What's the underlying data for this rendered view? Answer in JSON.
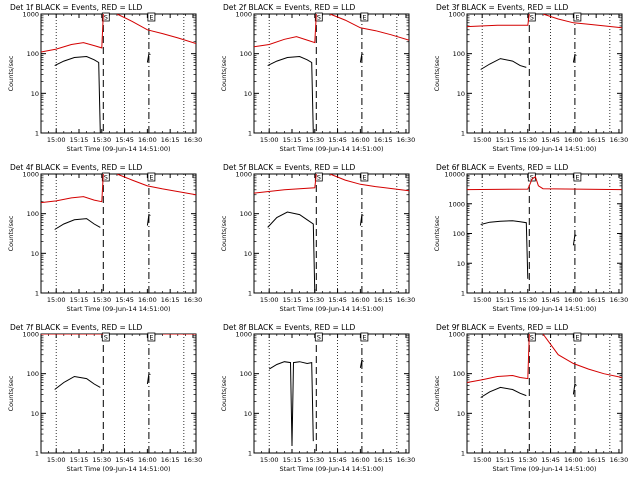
{
  "xlabel": "Start Time (09-Jun-14 14:51:00)",
  "ylabel": "Counts/sec",
  "x_tick_labels": [
    "15:00",
    "15:15",
    "15:30",
    "15:45",
    "16:00",
    "16:15",
    "16:30"
  ],
  "y_tick_labels": [
    "1",
    "10",
    "100",
    "1000"
  ],
  "y_tick_labels_big": [
    "1",
    "10",
    "100",
    "1000",
    "10000"
  ],
  "markers": [
    "S",
    "E"
  ],
  "colors": {
    "events": "#000000",
    "lld": "#d40000"
  },
  "chart_data": [
    {
      "type": "line",
      "title": "Det 1f BLACK = Events, RED = LLD",
      "x_range_min": [
        0,
        102
      ],
      "y_scale": "log",
      "ylim": [
        1,
        1000
      ],
      "dotted_lines_min": [
        10,
        55,
        94
      ],
      "dashed_lines_min": [
        41,
        71
      ],
      "series": [
        {
          "name": "Events",
          "color": "#000000",
          "segments": [
            [
              [
                9,
                50
              ],
              [
                15,
                65
              ],
              [
                22,
                80
              ],
              [
                30,
                85
              ],
              [
                35,
                70
              ],
              [
                38,
                60
              ],
              [
                39,
                1.0
              ]
            ],
            [
              [
                70,
                60
              ],
              [
                71,
                100
              ],
              [
                72,
                95
              ]
            ]
          ]
        },
        {
          "name": "LLD",
          "color": "#d40000",
          "segments": [
            [
              [
                0,
                110
              ],
              [
                10,
                130
              ],
              [
                20,
                170
              ],
              [
                28,
                190
              ],
              [
                35,
                160
              ],
              [
                40,
                140
              ],
              [
                41,
                1000
              ]
            ],
            [
              [
                50,
                1000
              ],
              [
                60,
                650
              ],
              [
                70,
                400
              ],
              [
                80,
                320
              ],
              [
                90,
                250
              ],
              [
                102,
                180
              ]
            ]
          ]
        }
      ]
    },
    {
      "type": "line",
      "title": "Det 2f BLACK = Events, RED = LLD",
      "x_range_min": [
        0,
        102
      ],
      "y_scale": "log",
      "ylim": [
        1,
        1000
      ],
      "dotted_lines_min": [
        10,
        55,
        94
      ],
      "dashed_lines_min": [
        41,
        71
      ],
      "series": [
        {
          "name": "Events",
          "color": "#000000",
          "segments": [
            [
              [
                9,
                50
              ],
              [
                15,
                65
              ],
              [
                22,
                80
              ],
              [
                30,
                85
              ],
              [
                35,
                70
              ],
              [
                38,
                60
              ],
              [
                39,
                1.0
              ]
            ],
            [
              [
                70,
                60
              ],
              [
                71,
                100
              ],
              [
                72,
                95
              ]
            ]
          ]
        },
        {
          "name": "LLD",
          "color": "#d40000",
          "segments": [
            [
              [
                0,
                150
              ],
              [
                10,
                170
              ],
              [
                20,
                230
              ],
              [
                28,
                270
              ],
              [
                35,
                220
              ],
              [
                40,
                190
              ],
              [
                41,
                1000
              ]
            ],
            [
              [
                50,
                1000
              ],
              [
                60,
                700
              ],
              [
                70,
                450
              ],
              [
                80,
                380
              ],
              [
                90,
                300
              ],
              [
                102,
                220
              ]
            ]
          ]
        }
      ]
    },
    {
      "type": "line",
      "title": "Det 3f BLACK = Events, RED = LLD",
      "x_range_min": [
        0,
        102
      ],
      "y_scale": "log",
      "ylim": [
        1,
        1000
      ],
      "dotted_lines_min": [
        10,
        55,
        94
      ],
      "dashed_lines_min": [
        41,
        71
      ],
      "series": [
        {
          "name": "Events",
          "color": "#000000",
          "segments": [
            [
              [
                9,
                40
              ],
              [
                15,
                55
              ],
              [
                22,
                75
              ],
              [
                30,
                65
              ],
              [
                35,
                50
              ],
              [
                39,
                45
              ]
            ],
            [
              [
                70,
                60
              ],
              [
                71,
                95
              ],
              [
                72,
                90
              ]
            ]
          ]
        },
        {
          "name": "LLD",
          "color": "#d40000",
          "segments": [
            [
              [
                0,
                480
              ],
              [
                20,
                520
              ],
              [
                40,
                520
              ],
              [
                41,
                1000
              ]
            ],
            [
              [
                50,
                1000
              ],
              [
                60,
                750
              ],
              [
                70,
                600
              ],
              [
                80,
                550
              ],
              [
                102,
                450
              ]
            ]
          ]
        }
      ]
    },
    {
      "type": "line",
      "title": "Det 4f BLACK = Events, RED = LLD",
      "x_range_min": [
        0,
        102
      ],
      "y_scale": "log",
      "ylim": [
        1,
        1000
      ],
      "dotted_lines_min": [
        10,
        55,
        94
      ],
      "dashed_lines_min": [
        41,
        71
      ],
      "series": [
        {
          "name": "Events",
          "color": "#000000",
          "segments": [
            [
              [
                9,
                40
              ],
              [
                15,
                55
              ],
              [
                22,
                70
              ],
              [
                30,
                75
              ],
              [
                35,
                55
              ],
              [
                39,
                45
              ]
            ],
            [
              [
                70,
                50
              ],
              [
                71,
                95
              ],
              [
                72,
                90
              ]
            ]
          ]
        },
        {
          "name": "LLD",
          "color": "#d40000",
          "segments": [
            [
              [
                0,
                190
              ],
              [
                10,
                210
              ],
              [
                20,
                250
              ],
              [
                28,
                270
              ],
              [
                35,
                220
              ],
              [
                40,
                200
              ],
              [
                41,
                1000
              ]
            ],
            [
              [
                50,
                1000
              ],
              [
                60,
                700
              ],
              [
                70,
                500
              ],
              [
                80,
                420
              ],
              [
                102,
                300
              ]
            ]
          ]
        }
      ]
    },
    {
      "type": "line",
      "title": "Det 5f BLACK = Events, RED = LLD",
      "x_range_min": [
        0,
        102
      ],
      "y_scale": "log",
      "ylim": [
        1,
        1000
      ],
      "dotted_lines_min": [
        10,
        55,
        94
      ],
      "dashed_lines_min": [
        41,
        71
      ],
      "series": [
        {
          "name": "Events",
          "color": "#000000",
          "segments": [
            [
              [
                9,
                45
              ],
              [
                15,
                80
              ],
              [
                22,
                110
              ],
              [
                30,
                95
              ],
              [
                35,
                70
              ],
              [
                39,
                55
              ],
              [
                40,
                1.0
              ]
            ],
            [
              [
                70,
                50
              ],
              [
                71,
                95
              ],
              [
                72,
                90
              ]
            ]
          ]
        },
        {
          "name": "LLD",
          "color": "#d40000",
          "segments": [
            [
              [
                0,
                330
              ],
              [
                20,
                400
              ],
              [
                40,
                450
              ],
              [
                41,
                1000
              ]
            ],
            [
              [
                50,
                1000
              ],
              [
                60,
                700
              ],
              [
                70,
                550
              ],
              [
                80,
                480
              ],
              [
                102,
                380
              ]
            ]
          ]
        }
      ]
    },
    {
      "type": "line",
      "title": "Det 6f BLACK = Events, RED = LLD",
      "x_range_min": [
        0,
        102
      ],
      "y_scale": "log",
      "ylim": [
        1,
        10000
      ],
      "dotted_lines_min": [
        10,
        55,
        94
      ],
      "dashed_lines_min": [
        41,
        71
      ],
      "series": [
        {
          "name": "Events",
          "color": "#000000",
          "segments": [
            [
              [
                9,
                200
              ],
              [
                15,
                240
              ],
              [
                22,
                260
              ],
              [
                30,
                270
              ],
              [
                35,
                250
              ],
              [
                39,
                230
              ],
              [
                40,
                3.0
              ]
            ],
            [
              [
                70,
                40
              ],
              [
                71,
                90
              ],
              [
                72,
                85
              ]
            ]
          ]
        },
        {
          "name": "LLD",
          "color": "#d40000",
          "segments": [
            [
              [
                0,
                3000
              ],
              [
                40,
                3100
              ],
              [
                41,
                4000
              ],
              [
                43,
                7000
              ],
              [
                45,
                8000
              ],
              [
                47,
                4000
              ],
              [
                50,
                3200
              ],
              [
                102,
                3000
              ]
            ]
          ]
        }
      ]
    },
    {
      "type": "line",
      "title": "Det 7f BLACK = Events, RED = LLD",
      "x_range_min": [
        0,
        102
      ],
      "y_scale": "log",
      "ylim": [
        1,
        1000
      ],
      "dotted_lines_min": [
        10,
        55,
        94
      ],
      "dashed_lines_min": [
        41,
        71
      ],
      "series": [
        {
          "name": "Events",
          "color": "#000000",
          "segments": [
            [
              [
                9,
                40
              ],
              [
                15,
                60
              ],
              [
                22,
                85
              ],
              [
                30,
                75
              ],
              [
                35,
                55
              ],
              [
                39,
                45
              ]
            ],
            [
              [
                70,
                55
              ],
              [
                71,
                100
              ],
              [
                72,
                95
              ]
            ]
          ]
        },
        {
          "name": "LLD",
          "color": "#d40000",
          "segments": [
            [
              [
                0,
                1000
              ],
              [
                41,
                1000
              ]
            ],
            [
              [
                80,
                1000
              ],
              [
                102,
                1000
              ]
            ]
          ]
        }
      ]
    },
    {
      "type": "line",
      "title": "Det 8f BLACK = Events, RED = LLD",
      "x_range_min": [
        0,
        102
      ],
      "y_scale": "log",
      "ylim": [
        1,
        1000
      ],
      "dotted_lines_min": [
        10,
        55,
        94
      ],
      "dashed_lines_min": [
        41,
        71
      ],
      "series": [
        {
          "name": "Events",
          "color": "#000000",
          "segments": [
            [
              [
                10,
                130
              ],
              [
                15,
                170
              ],
              [
                20,
                200
              ],
              [
                24,
                190
              ],
              [
                25,
                1.5
              ],
              [
                26,
                190
              ],
              [
                30,
                200
              ],
              [
                35,
                180
              ],
              [
                38,
                190
              ],
              [
                39,
                2.0
              ]
            ],
            [
              [
                70,
                140
              ],
              [
                71,
                220
              ],
              [
                72,
                200
              ]
            ]
          ]
        }
      ]
    },
    {
      "type": "line",
      "title": "Det 9f BLACK = Events, RED = LLD",
      "x_range_min": [
        0,
        102
      ],
      "y_scale": "log",
      "ylim": [
        1,
        1000
      ],
      "dotted_lines_min": [
        10,
        55,
        94
      ],
      "dashed_lines_min": [
        41,
        71
      ],
      "series": [
        {
          "name": "Events",
          "color": "#000000",
          "segments": [
            [
              [
                9,
                25
              ],
              [
                15,
                35
              ],
              [
                22,
                45
              ],
              [
                30,
                40
              ],
              [
                35,
                32
              ],
              [
                39,
                28
              ]
            ],
            [
              [
                70,
                30
              ],
              [
                71,
                55
              ],
              [
                72,
                50
              ]
            ]
          ]
        },
        {
          "name": "LLD",
          "color": "#d40000",
          "segments": [
            [
              [
                0,
                60
              ],
              [
                10,
                70
              ],
              [
                20,
                85
              ],
              [
                30,
                90
              ],
              [
                35,
                80
              ],
              [
                40,
                75
              ],
              [
                41,
                1000
              ]
            ],
            [
              [
                50,
                1000
              ],
              [
                60,
                300
              ],
              [
                70,
                180
              ],
              [
                80,
                130
              ],
              [
                90,
                100
              ],
              [
                102,
                80
              ]
            ]
          ]
        }
      ]
    }
  ]
}
